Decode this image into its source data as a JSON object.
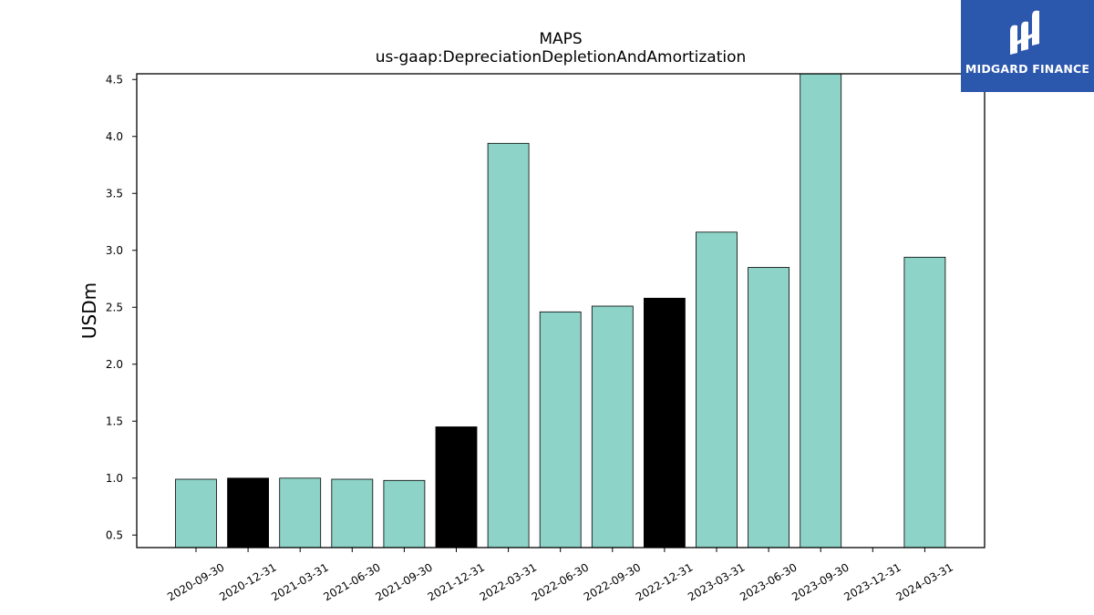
{
  "chart_data": {
    "type": "bar",
    "title": "MAPS",
    "subtitle": "us-gaap:DepreciationDepletionAndAmortization",
    "xlabel": "",
    "ylabel": "USDm",
    "ylim": [
      0.39,
      4.55
    ],
    "yticks": [
      0.5,
      1.0,
      1.5,
      2.0,
      2.5,
      3.0,
      3.5,
      4.0,
      4.5
    ],
    "categories": [
      "2020-09-30",
      "2020-12-31",
      "2021-03-31",
      "2021-06-30",
      "2021-09-30",
      "2021-12-31",
      "2022-03-31",
      "2022-06-30",
      "2022-09-30",
      "2022-12-31",
      "2023-03-31",
      "2023-06-30",
      "2023-09-30",
      "2023-12-31",
      "2024-03-31"
    ],
    "values": [
      0.99,
      1.0,
      1.0,
      0.99,
      0.98,
      1.45,
      3.94,
      2.46,
      2.51,
      2.58,
      3.16,
      2.85,
      4.6,
      null,
      2.94
    ],
    "highlight": [
      false,
      true,
      false,
      false,
      false,
      true,
      false,
      false,
      false,
      true,
      false,
      false,
      false,
      false,
      false
    ],
    "colors": {
      "normal": "#8dd3c7",
      "highlight": "#000000",
      "edge": "#000000"
    },
    "grid": false,
    "legend": "none"
  },
  "logo": {
    "text": "MIDGARD FINANCE",
    "background": "#2b57ad"
  }
}
